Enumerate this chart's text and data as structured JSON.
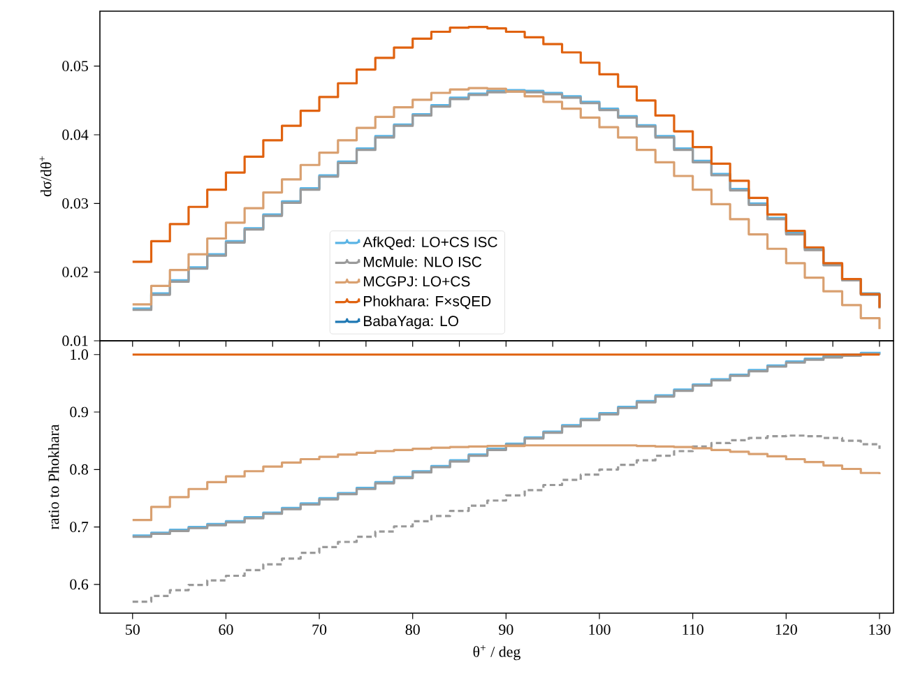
{
  "chart_data": [
    {
      "type": "step",
      "ylabel": "dσ/dθ$^{+}$",
      "xlim": [
        46.5,
        131.5
      ],
      "ylim": [
        0.01,
        0.058
      ],
      "yticks": [
        0.01,
        0.02,
        0.03,
        0.04,
        0.05
      ],
      "tick_labels": "y",
      "legend": "bottom",
      "grid": false,
      "x": [
        50,
        52,
        54,
        56,
        58,
        60,
        62,
        64,
        66,
        68,
        70,
        72,
        74,
        76,
        78,
        80,
        82,
        84,
        86,
        88,
        90,
        92,
        94,
        96,
        98,
        100,
        102,
        104,
        106,
        108,
        110,
        112,
        114,
        116,
        118,
        120,
        122,
        124,
        126,
        128,
        130
      ],
      "series": [
        {
          "name": "AfkQed: LO+CS ISC",
          "color": "#5ab4e5",
          "values": [
            0.0147,
            0.0169,
            0.0188,
            0.0207,
            0.0226,
            0.0245,
            0.0264,
            0.0284,
            0.0303,
            0.0322,
            0.0341,
            0.0361,
            0.038,
            0.0398,
            0.0415,
            0.043,
            0.0443,
            0.0454,
            0.046,
            0.0464,
            0.0465,
            0.0464,
            0.0461,
            0.0456,
            0.0448,
            0.0438,
            0.0427,
            0.0414,
            0.0398,
            0.038,
            0.0362,
            0.0343,
            0.0321,
            0.03,
            0.0279,
            0.0257,
            0.0234,
            0.0212,
            0.019,
            0.0169,
            0.0149
          ]
        },
        {
          "name": "McMule: NLO ISC",
          "color": "#9a9a9a",
          "values": [
            0.0145,
            0.0167,
            0.0186,
            0.0205,
            0.0224,
            0.0243,
            0.0262,
            0.0282,
            0.0301,
            0.032,
            0.0339,
            0.0359,
            0.0378,
            0.0396,
            0.0413,
            0.0428,
            0.0441,
            0.0452,
            0.0458,
            0.0462,
            0.0463,
            0.0462,
            0.0459,
            0.0454,
            0.0446,
            0.0436,
            0.0425,
            0.0412,
            0.0396,
            0.0378,
            0.036,
            0.0341,
            0.0319,
            0.0298,
            0.0277,
            0.0255,
            0.0232,
            0.021,
            0.0188,
            0.0167,
            0.0147
          ]
        },
        {
          "name": "MCGPJ: LO+CS",
          "color": "#d9a070",
          "values": [
            0.0153,
            0.018,
            0.0203,
            0.0226,
            0.0249,
            0.0272,
            0.0293,
            0.0316,
            0.0335,
            0.0356,
            0.0374,
            0.0392,
            0.041,
            0.0426,
            0.044,
            0.0451,
            0.0461,
            0.0466,
            0.0468,
            0.0467,
            0.0463,
            0.0456,
            0.0448,
            0.0438,
            0.0425,
            0.0411,
            0.0396,
            0.0378,
            0.036,
            0.034,
            0.032,
            0.0299,
            0.0277,
            0.0255,
            0.0234,
            0.0213,
            0.0192,
            0.0172,
            0.0152,
            0.0133,
            0.0117
          ]
        },
        {
          "name": "Phokhara: F×sQED",
          "color": "#e0620f",
          "values": [
            0.0215,
            0.0245,
            0.027,
            0.0295,
            0.032,
            0.0345,
            0.0368,
            0.0392,
            0.0413,
            0.0435,
            0.0455,
            0.0475,
            0.0495,
            0.0512,
            0.0527,
            0.054,
            0.055,
            0.0556,
            0.0557,
            0.0555,
            0.055,
            0.0542,
            0.0532,
            0.052,
            0.0505,
            0.0488,
            0.047,
            0.045,
            0.0428,
            0.0405,
            0.0382,
            0.0358,
            0.0333,
            0.0308,
            0.0284,
            0.026,
            0.0236,
            0.0213,
            0.019,
            0.0168,
            0.0148
          ]
        },
        {
          "name": "BabaYaga: LO",
          "color": "#1f78b4",
          "values": [
            null,
            null,
            null,
            null,
            null,
            null,
            null,
            null,
            null,
            null,
            null,
            null,
            null,
            null,
            null,
            null,
            null,
            null,
            null,
            null,
            null,
            null,
            null,
            null,
            null,
            null,
            null,
            null,
            null,
            null,
            null,
            null,
            null,
            null,
            null,
            null,
            null,
            null,
            null,
            null,
            null
          ]
        }
      ]
    },
    {
      "type": "step",
      "xlabel": "θ$^{+}$ / deg",
      "ylabel": "ratio to Phokhara",
      "xlim": [
        46.5,
        131.5
      ],
      "ylim": [
        0.55,
        1.024
      ],
      "xticks": [
        50,
        60,
        70,
        80,
        90,
        100,
        110,
        120,
        130
      ],
      "yticks": [
        0.6,
        0.7,
        0.8,
        0.9,
        {
          "value": 1,
          "label": "1.0"
        }
      ],
      "grid": false,
      "x": [
        50,
        52,
        54,
        56,
        58,
        60,
        62,
        64,
        66,
        68,
        70,
        72,
        74,
        76,
        78,
        80,
        82,
        84,
        86,
        88,
        90,
        92,
        94,
        96,
        98,
        100,
        102,
        104,
        106,
        108,
        110,
        112,
        114,
        116,
        118,
        120,
        122,
        124,
        126,
        128,
        130
      ],
      "series": [
        {
          "color": "#5ab4e5",
          "values": [
            0.685,
            0.69,
            0.695,
            0.7,
            0.705,
            0.71,
            0.717,
            0.725,
            0.733,
            0.741,
            0.75,
            0.759,
            0.768,
            0.778,
            0.787,
            0.797,
            0.806,
            0.816,
            0.826,
            0.836,
            0.845,
            0.856,
            0.866,
            0.877,
            0.888,
            0.898,
            0.909,
            0.919,
            0.929,
            0.939,
            0.948,
            0.957,
            0.965,
            0.973,
            0.981,
            0.988,
            0.993,
            0.997,
            1.0,
            1.003,
            1.005
          ]
        },
        {
          "color": "#9a9a9a",
          "values": [
            0.683,
            0.688,
            0.693,
            0.698,
            0.703,
            0.708,
            0.715,
            0.723,
            0.731,
            0.739,
            0.748,
            0.757,
            0.766,
            0.776,
            0.785,
            0.795,
            0.804,
            0.814,
            0.824,
            0.834,
            0.843,
            0.854,
            0.864,
            0.875,
            0.886,
            0.896,
            0.907,
            0.917,
            0.927,
            0.937,
            0.946,
            0.955,
            0.963,
            0.971,
            0.979,
            0.986,
            0.991,
            0.995,
            0.998,
            1.001,
            1.002
          ]
        },
        {
          "color": "#9a9a9a",
          "line_style": "dashed",
          "values": [
            0.57,
            0.58,
            0.59,
            0.599,
            0.607,
            0.615,
            0.625,
            0.635,
            0.645,
            0.655,
            0.665,
            0.674,
            0.683,
            0.692,
            0.701,
            0.71,
            0.719,
            0.728,
            0.737,
            0.746,
            0.755,
            0.764,
            0.773,
            0.782,
            0.791,
            0.8,
            0.808,
            0.816,
            0.824,
            0.832,
            0.84,
            0.846,
            0.851,
            0.855,
            0.858,
            0.859,
            0.858,
            0.855,
            0.85,
            0.844,
            0.836
          ]
        },
        {
          "color": "#d9a070",
          "values": [
            0.712,
            0.735,
            0.752,
            0.766,
            0.778,
            0.788,
            0.797,
            0.805,
            0.812,
            0.818,
            0.822,
            0.826,
            0.829,
            0.832,
            0.834,
            0.836,
            0.838,
            0.839,
            0.84,
            0.841,
            0.841,
            0.842,
            0.842,
            0.842,
            0.842,
            0.842,
            0.842,
            0.841,
            0.84,
            0.839,
            0.837,
            0.834,
            0.831,
            0.827,
            0.823,
            0.818,
            0.813,
            0.807,
            0.801,
            0.794,
            0.792
          ]
        },
        {
          "color": "#e0620f",
          "values": [
            1,
            1,
            1,
            1,
            1,
            1,
            1,
            1,
            1,
            1,
            1,
            1,
            1,
            1,
            1,
            1,
            1,
            1,
            1,
            1,
            1,
            1,
            1,
            1,
            1,
            1,
            1,
            1,
            1,
            1,
            1,
            1,
            1,
            1,
            1,
            1,
            1,
            1,
            1,
            1,
            1
          ]
        }
      ]
    }
  ]
}
